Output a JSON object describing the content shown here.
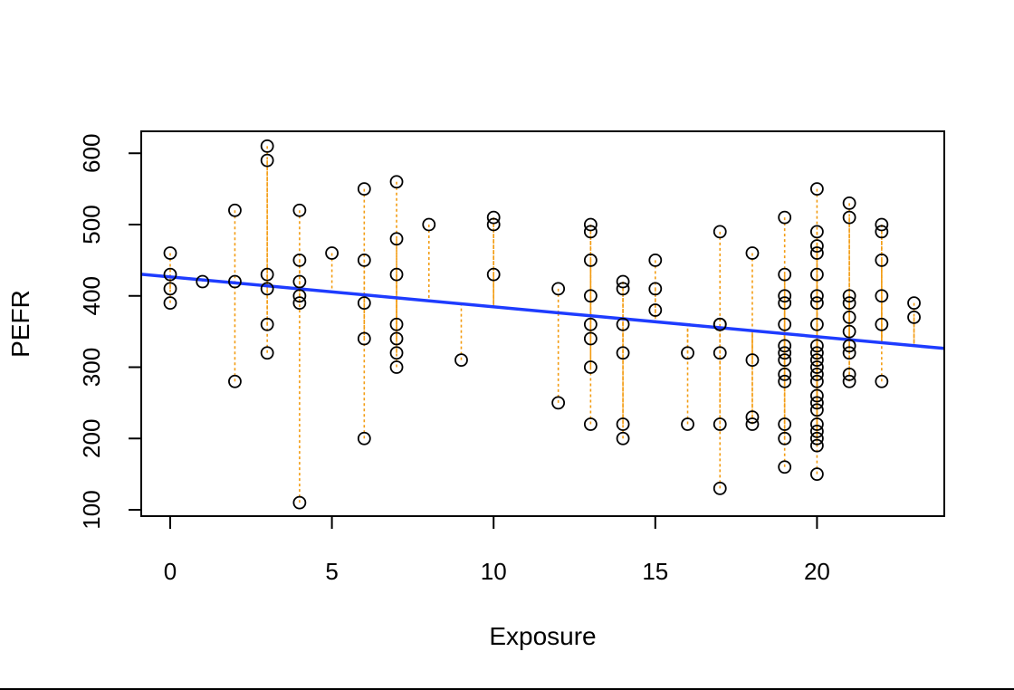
{
  "chart_data": {
    "type": "scatter",
    "title": "",
    "xlabel": "Exposure",
    "ylabel": "PEFR",
    "xlim": [
      -0.9,
      24
    ],
    "ylim": [
      90,
      630
    ],
    "x_ticks": [
      0,
      5,
      10,
      15,
      20
    ],
    "y_ticks": [
      100,
      200,
      300,
      400,
      500,
      600
    ],
    "grid": false,
    "point_color": "#000000",
    "residual_color": "#f39c12",
    "line_color": "#1e3cff",
    "regression_line": {
      "intercept": 426.6,
      "slope": -4.18
    },
    "points": [
      {
        "x": 0,
        "y": 460
      },
      {
        "x": 0,
        "y": 430
      },
      {
        "x": 0,
        "y": 410
      },
      {
        "x": 0,
        "y": 390
      },
      {
        "x": 1,
        "y": 420
      },
      {
        "x": 2,
        "y": 520
      },
      {
        "x": 2,
        "y": 420
      },
      {
        "x": 2,
        "y": 280
      },
      {
        "x": 3,
        "y": 610
      },
      {
        "x": 3,
        "y": 590
      },
      {
        "x": 3,
        "y": 430
      },
      {
        "x": 3,
        "y": 410
      },
      {
        "x": 3,
        "y": 360
      },
      {
        "x": 3,
        "y": 320
      },
      {
        "x": 4,
        "y": 520
      },
      {
        "x": 4,
        "y": 450
      },
      {
        "x": 4,
        "y": 420
      },
      {
        "x": 4,
        "y": 400
      },
      {
        "x": 4,
        "y": 390
      },
      {
        "x": 4,
        "y": 110
      },
      {
        "x": 5,
        "y": 460
      },
      {
        "x": 6,
        "y": 550
      },
      {
        "x": 6,
        "y": 450
      },
      {
        "x": 6,
        "y": 390
      },
      {
        "x": 6,
        "y": 340
      },
      {
        "x": 6,
        "y": 200
      },
      {
        "x": 7,
        "y": 560
      },
      {
        "x": 7,
        "y": 480
      },
      {
        "x": 7,
        "y": 430
      },
      {
        "x": 7,
        "y": 360
      },
      {
        "x": 7,
        "y": 340
      },
      {
        "x": 7,
        "y": 320
      },
      {
        "x": 7,
        "y": 300
      },
      {
        "x": 8,
        "y": 500
      },
      {
        "x": 9,
        "y": 310
      },
      {
        "x": 10,
        "y": 510
      },
      {
        "x": 10,
        "y": 500
      },
      {
        "x": 10,
        "y": 430
      },
      {
        "x": 12,
        "y": 410
      },
      {
        "x": 12,
        "y": 250
      },
      {
        "x": 13,
        "y": 500
      },
      {
        "x": 13,
        "y": 490
      },
      {
        "x": 13,
        "y": 450
      },
      {
        "x": 13,
        "y": 400
      },
      {
        "x": 13,
        "y": 360
      },
      {
        "x": 13,
        "y": 340
      },
      {
        "x": 13,
        "y": 300
      },
      {
        "x": 13,
        "y": 220
      },
      {
        "x": 14,
        "y": 420
      },
      {
        "x": 14,
        "y": 410
      },
      {
        "x": 14,
        "y": 360
      },
      {
        "x": 14,
        "y": 320
      },
      {
        "x": 14,
        "y": 220
      },
      {
        "x": 14,
        "y": 200
      },
      {
        "x": 15,
        "y": 450
      },
      {
        "x": 15,
        "y": 410
      },
      {
        "x": 15,
        "y": 380
      },
      {
        "x": 16,
        "y": 320
      },
      {
        "x": 16,
        "y": 220
      },
      {
        "x": 17,
        "y": 490
      },
      {
        "x": 17,
        "y": 360
      },
      {
        "x": 17,
        "y": 360
      },
      {
        "x": 17,
        "y": 320
      },
      {
        "x": 17,
        "y": 220
      },
      {
        "x": 17,
        "y": 130
      },
      {
        "x": 18,
        "y": 460
      },
      {
        "x": 18,
        "y": 310
      },
      {
        "x": 18,
        "y": 230
      },
      {
        "x": 18,
        "y": 220
      },
      {
        "x": 19,
        "y": 510
      },
      {
        "x": 19,
        "y": 430
      },
      {
        "x": 19,
        "y": 400
      },
      {
        "x": 19,
        "y": 390
      },
      {
        "x": 19,
        "y": 360
      },
      {
        "x": 19,
        "y": 330
      },
      {
        "x": 19,
        "y": 320
      },
      {
        "x": 19,
        "y": 310
      },
      {
        "x": 19,
        "y": 290
      },
      {
        "x": 19,
        "y": 280
      },
      {
        "x": 19,
        "y": 220
      },
      {
        "x": 19,
        "y": 200
      },
      {
        "x": 19,
        "y": 160
      },
      {
        "x": 20,
        "y": 550
      },
      {
        "x": 20,
        "y": 490
      },
      {
        "x": 20,
        "y": 470
      },
      {
        "x": 20,
        "y": 460
      },
      {
        "x": 20,
        "y": 430
      },
      {
        "x": 20,
        "y": 400
      },
      {
        "x": 20,
        "y": 390
      },
      {
        "x": 20,
        "y": 360
      },
      {
        "x": 20,
        "y": 330
      },
      {
        "x": 20,
        "y": 320
      },
      {
        "x": 20,
        "y": 310
      },
      {
        "x": 20,
        "y": 300
      },
      {
        "x": 20,
        "y": 290
      },
      {
        "x": 20,
        "y": 280
      },
      {
        "x": 20,
        "y": 260
      },
      {
        "x": 20,
        "y": 250
      },
      {
        "x": 20,
        "y": 240
      },
      {
        "x": 20,
        "y": 220
      },
      {
        "x": 20,
        "y": 210
      },
      {
        "x": 20,
        "y": 200
      },
      {
        "x": 20,
        "y": 190
      },
      {
        "x": 20,
        "y": 150
      },
      {
        "x": 21,
        "y": 530
      },
      {
        "x": 21,
        "y": 510
      },
      {
        "x": 21,
        "y": 400
      },
      {
        "x": 21,
        "y": 390
      },
      {
        "x": 21,
        "y": 370
      },
      {
        "x": 21,
        "y": 350
      },
      {
        "x": 21,
        "y": 330
      },
      {
        "x": 21,
        "y": 320
      },
      {
        "x": 21,
        "y": 290
      },
      {
        "x": 21,
        "y": 280
      },
      {
        "x": 22,
        "y": 500
      },
      {
        "x": 22,
        "y": 490
      },
      {
        "x": 22,
        "y": 450
      },
      {
        "x": 22,
        "y": 400
      },
      {
        "x": 22,
        "y": 360
      },
      {
        "x": 22,
        "y": 280
      },
      {
        "x": 23,
        "y": 390
      },
      {
        "x": 23,
        "y": 370
      }
    ]
  }
}
